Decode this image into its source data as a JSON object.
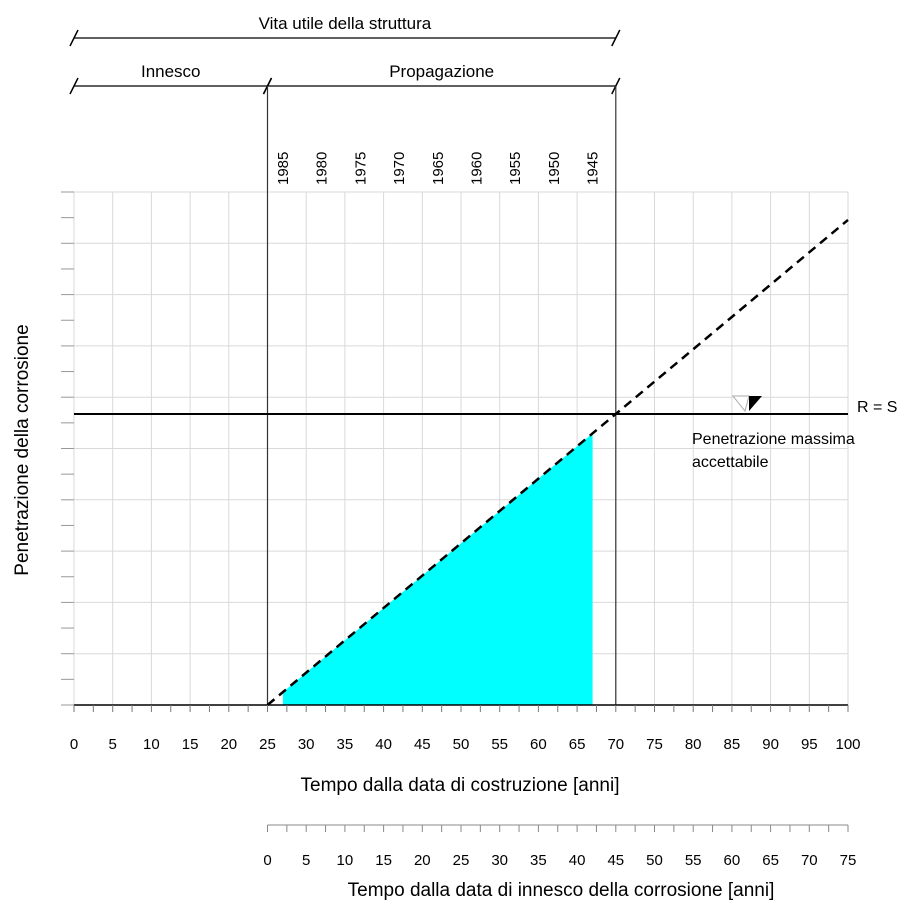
{
  "chart_data": {
    "type": "line",
    "title": "",
    "xlabel": "Tempo dalla data di costruzione [anni]",
    "ylabel": "Penetrazione della corrosione",
    "x_ticks": [
      0,
      5,
      10,
      15,
      20,
      25,
      30,
      35,
      40,
      45,
      50,
      55,
      60,
      65,
      70,
      75,
      80,
      85,
      90,
      95,
      100
    ],
    "xlim": [
      0,
      100
    ],
    "secondary_x": {
      "label": "Tempo dalla data di innesco della corrosione [anni]",
      "ticks": [
        0,
        5,
        10,
        15,
        20,
        25,
        30,
        35,
        40,
        45,
        50,
        55,
        60,
        65,
        70,
        75
      ],
      "offset_from_primary": 25
    },
    "top_years": {
      "labels": [
        "1985",
        "1980",
        "1975",
        "1970",
        "1965",
        "1960",
        "1955",
        "1950",
        "1945"
      ],
      "x_positions": [
        27,
        32,
        37,
        42,
        47,
        52,
        57,
        62,
        67
      ]
    },
    "brackets": [
      {
        "label": "Vita utile della struttura",
        "x_range": [
          0,
          70
        ]
      },
      {
        "label": "Innesco",
        "x_range": [
          0,
          25
        ]
      },
      {
        "label": "Propagazione",
        "x_range": [
          25,
          70
        ]
      }
    ],
    "threshold": {
      "label": "R = S",
      "note_line1": "Penetrazione massima",
      "note_line2": "accettabile"
    },
    "series": [
      {
        "style": "dashed",
        "x": [
          25,
          100
        ],
        "y_relative": [
          0,
          1.667
        ]
      }
    ],
    "shaded_region": {
      "color": "#00ffff",
      "x_range": [
        27,
        67
      ]
    },
    "grid": true,
    "colors": {
      "fill": "#00ffff",
      "line": "#000000",
      "grid": "#d9d9d9"
    }
  }
}
